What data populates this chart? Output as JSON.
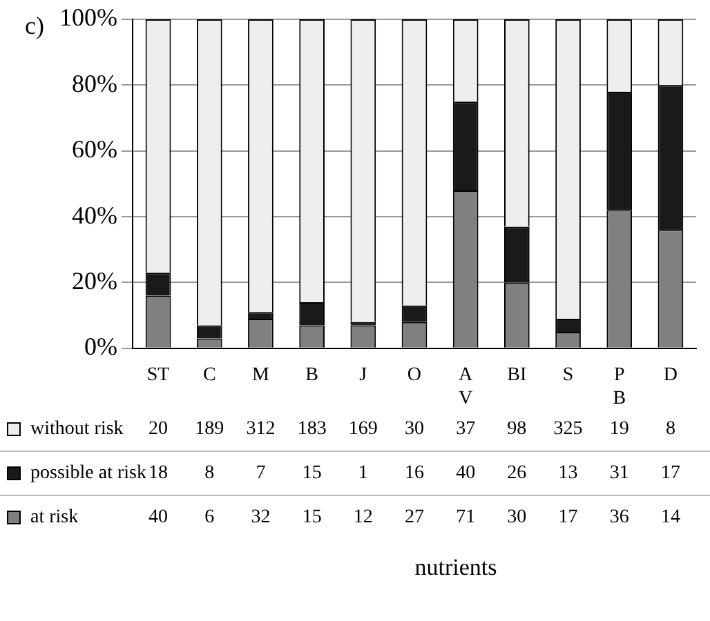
{
  "chart_data": {
    "type": "bar",
    "stacked": true,
    "title": "c)",
    "categories": [
      "ST",
      "C",
      "M",
      "B",
      "J",
      "O",
      "A\nV",
      "BI",
      "S",
      "P\nB",
      "D"
    ],
    "series": [
      {
        "name": "at risk",
        "color": "#808080",
        "values": [
          16,
          3,
          9,
          7,
          7,
          8,
          48,
          20,
          5,
          42,
          36
        ]
      },
      {
        "name": "possible at risk",
        "color": "#1a1a1a",
        "values": [
          7,
          4,
          2,
          7,
          1,
          5,
          27,
          17,
          4,
          36,
          44
        ]
      },
      {
        "name": "without risk",
        "color": "#eeeeee",
        "values": [
          77,
          93,
          89,
          86,
          92,
          87,
          25,
          63,
          91,
          22,
          20
        ]
      }
    ],
    "annotations": [
      "20 189 312 183 169 30 37 98 325 19 8",
      "18 8 7 15 1 16 40 26 13 31 17",
      "40 6 32 15 12 27 71 30 17 36 14",
      "nutrients"
    ],
    "ylim": [
      0,
      100
    ],
    "yticks": [
      {
        "value": 0,
        "label": "0%"
      },
      {
        "value": 20,
        "label": "20%"
      },
      {
        "value": 40,
        "label": "40%"
      },
      {
        "value": 60,
        "label": "60%"
      },
      {
        "value": 80,
        "label": "80%"
      },
      {
        "value": 100,
        "label": "100%"
      }
    ],
    "grid": "y",
    "legend": "bottom"
  }
}
